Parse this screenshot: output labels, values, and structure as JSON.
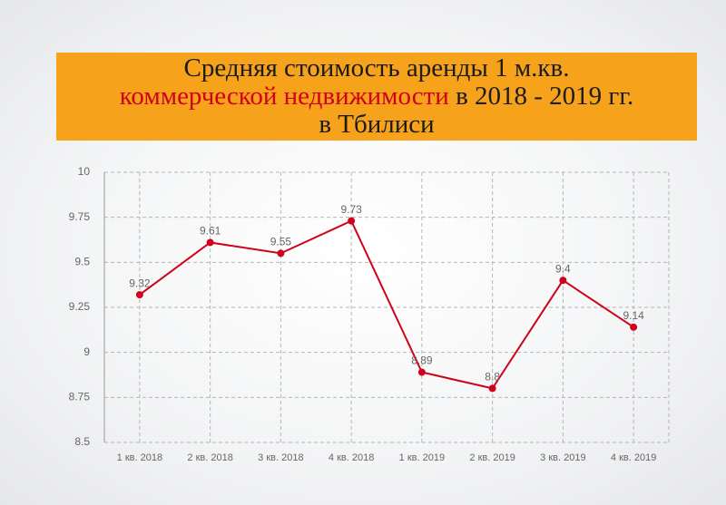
{
  "chart_data": {
    "type": "line",
    "title": [
      "Средняя стоимость аренды 1 м.кв.",
      "коммерческой недвижимости",
      "в 2018 - 2019 гг.",
      "в Тбилиси"
    ],
    "title_highlight_color": "#d0021b",
    "categories": [
      "1 кв. 2018",
      "2 кв. 2018",
      "3 кв. 2018",
      "4 кв. 2018",
      "1 кв. 2019",
      "2 кв. 2019",
      "3 кв. 2019",
      "4 кв. 2019"
    ],
    "series": [
      {
        "color": "#d0021b",
        "values": [
          9.32,
          9.61,
          9.55,
          9.73,
          8.89,
          8.8,
          9.4,
          9.14
        ]
      }
    ],
    "ylim": [
      8.5,
      10
    ],
    "yticks": [
      8.5,
      8.75,
      9,
      9.25,
      9.5,
      9.75,
      10
    ],
    "grid": true
  }
}
